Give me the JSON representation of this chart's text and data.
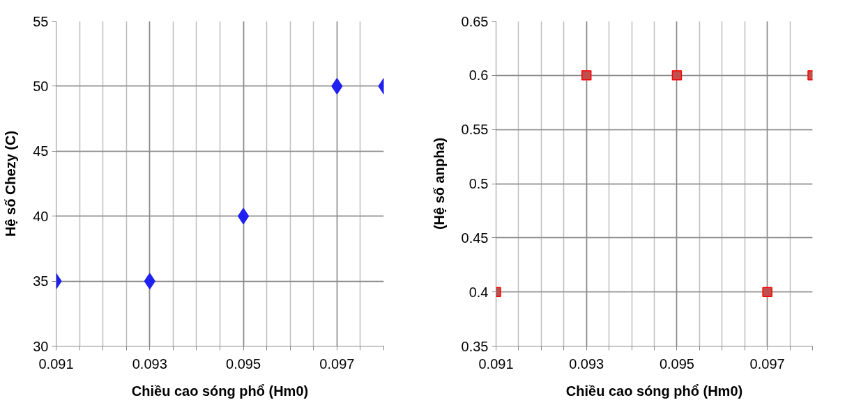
{
  "chart_data": [
    {
      "type": "scatter",
      "xlabel": "Chiều cao sóng phổ (Hm0)",
      "ylabel": "Hệ số Chezy (C)",
      "x": [
        0.091,
        0.093,
        0.095,
        0.097,
        0.098
      ],
      "series": [
        {
          "color": "#2020f0",
          "values": [
            35,
            35,
            40,
            50,
            50
          ]
        }
      ],
      "marker": "diamond",
      "grid": true,
      "xlim": [
        0.091,
        0.098
      ],
      "ylim": [
        30,
        55
      ],
      "yticks": [
        30,
        35,
        40,
        45,
        50,
        55
      ],
      "xticks": [
        0.091,
        {
          "value": 0.0915,
          "label": null
        },
        {
          "value": 0.092,
          "label": null
        },
        {
          "value": 0.0925,
          "label": null
        },
        0.093,
        {
          "value": 0.0935,
          "label": null
        },
        {
          "value": 0.094,
          "label": null
        },
        {
          "value": 0.0945,
          "label": null
        },
        0.095,
        {
          "value": 0.0955,
          "label": null
        },
        {
          "value": 0.096,
          "label": null
        },
        {
          "value": 0.0965,
          "label": null
        },
        0.097,
        {
          "value": 0.0975,
          "label": null
        },
        {
          "value": 0.098,
          "label": null
        }
      ]
    },
    {
      "type": "scatter",
      "xlabel": "Chiều cao sóng phổ (Hm0)",
      "ylabel": "(Hệ số anpha)",
      "x": [
        0.091,
        0.093,
        0.095,
        0.097,
        0.098
      ],
      "series": [
        {
          "color": "#c0504d",
          "values": [
            0.4,
            0.6,
            0.6,
            0.4,
            0.6
          ]
        }
      ],
      "marker": "square",
      "grid": true,
      "xlim": [
        0.091,
        0.098
      ],
      "ylim": [
        0.35,
        0.65
      ],
      "yticks": [
        0.35,
        0.4,
        0.45,
        0.5,
        0.55,
        0.6,
        0.65
      ],
      "xticks": [
        0.091,
        {
          "value": 0.0915,
          "label": null
        },
        {
          "value": 0.092,
          "label": null
        },
        {
          "value": 0.0925,
          "label": null
        },
        0.093,
        {
          "value": 0.0935,
          "label": null
        },
        {
          "value": 0.094,
          "label": null
        },
        {
          "value": 0.0945,
          "label": null
        },
        0.095,
        {
          "value": 0.0955,
          "label": null
        },
        {
          "value": 0.096,
          "label": null
        },
        {
          "value": 0.0965,
          "label": null
        },
        0.097,
        {
          "value": 0.0975,
          "label": null
        },
        {
          "value": 0.098,
          "label": null
        }
      ]
    }
  ]
}
